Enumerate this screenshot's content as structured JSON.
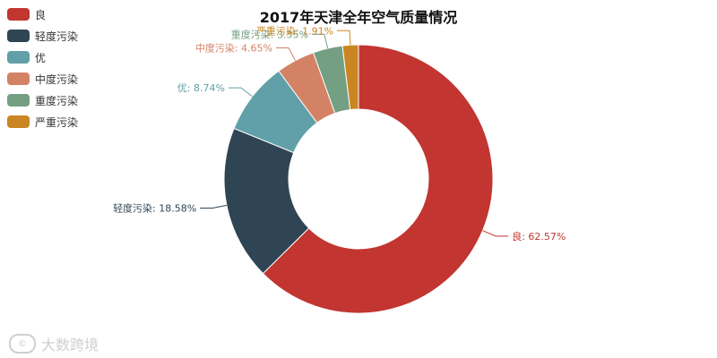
{
  "chart_data": {
    "type": "pie",
    "title": "2017年天津全年空气质量情况",
    "legend_position": "top-left",
    "slices": [
      {
        "name": "良",
        "value": 62.57,
        "label": "良: 62.57%",
        "color": "#c23531"
      },
      {
        "name": "轻度污染",
        "value": 18.58,
        "label": "轻度污染: 18.58%",
        "color": "#2f4554"
      },
      {
        "name": "优",
        "value": 8.74,
        "label": "优: 8.74%",
        "color": "#61a0a8"
      },
      {
        "name": "中度污染",
        "value": 4.65,
        "label": "中度污染: 4.65%",
        "color": "#d48265"
      },
      {
        "name": "重度污染",
        "value": 3.55,
        "label": "重度污染: 3.55%",
        "color": "#749f83"
      },
      {
        "name": "严重污染",
        "value": 1.91,
        "label": "严重污染: 1.91%",
        "color": "#ca8622"
      }
    ]
  },
  "watermark": {
    "text": "大数跨境",
    "logo_text": "©"
  }
}
